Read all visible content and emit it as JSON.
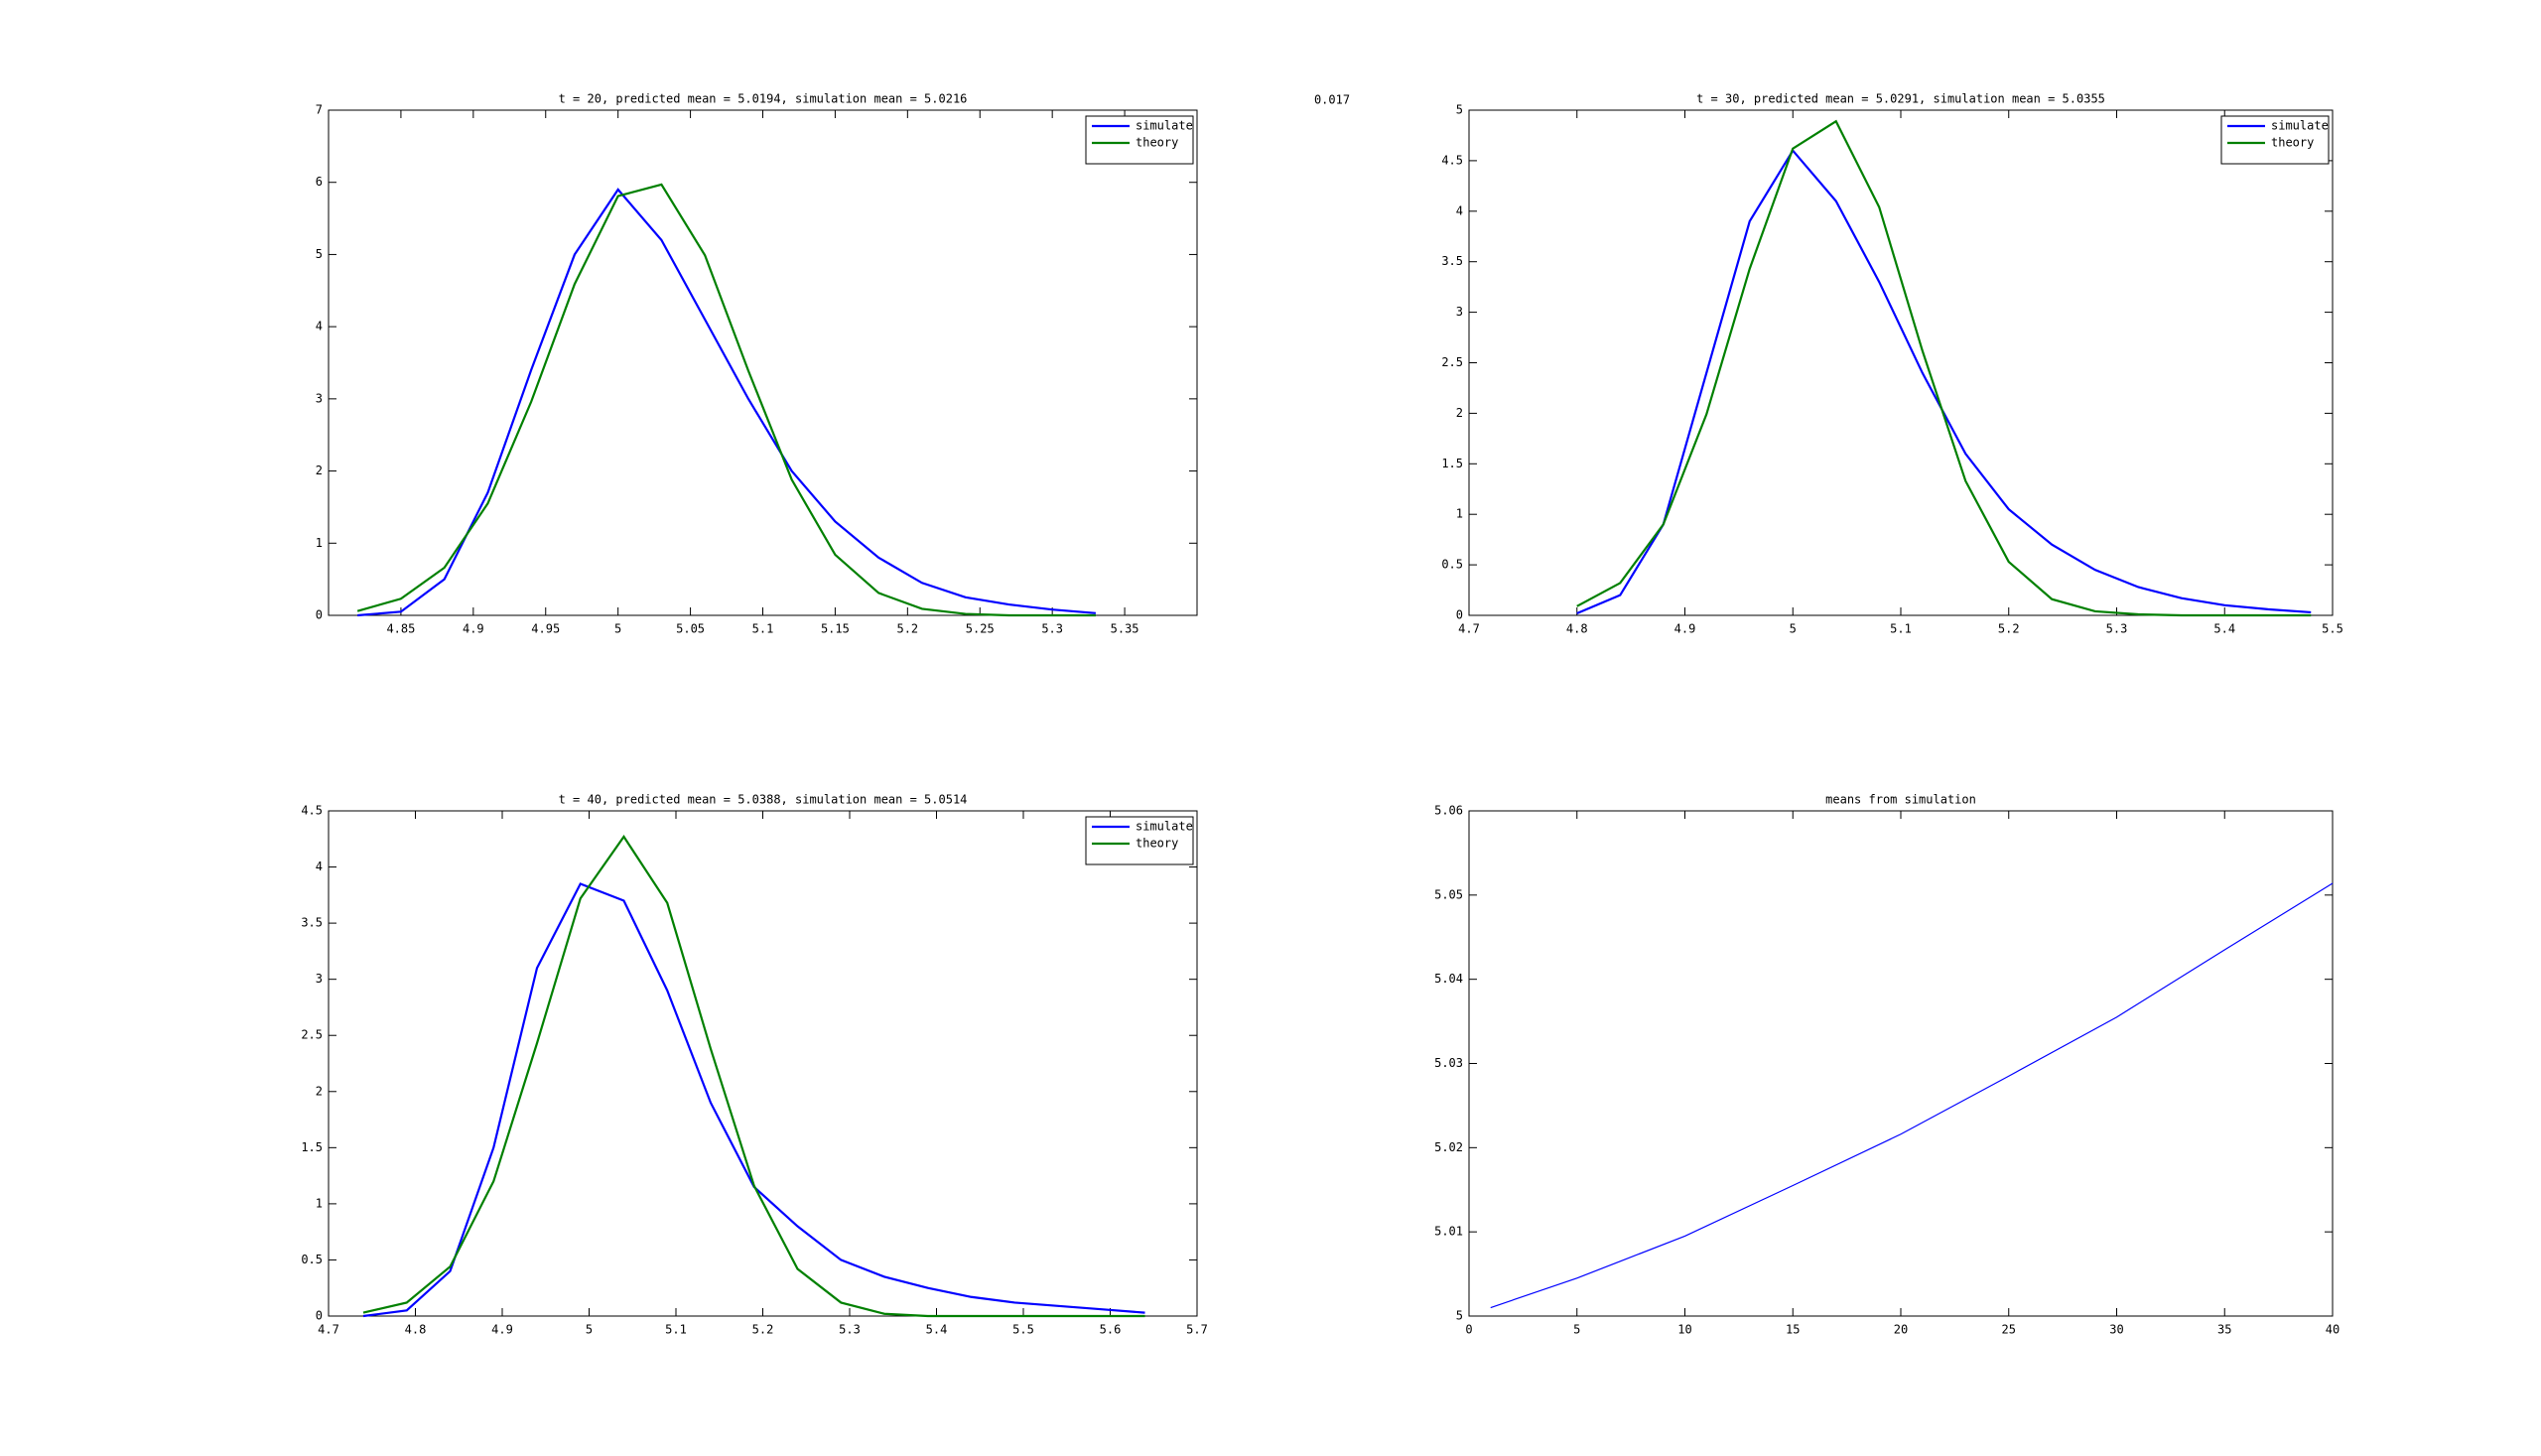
{
  "annotation": "0.017",
  "chart_data": [
    {
      "type": "line",
      "title": "t = 20,  predicted mean = 5.0194,  simulation mean = 5.0216",
      "x": [
        4.82,
        4.85,
        4.88,
        4.91,
        4.94,
        4.97,
        5.0,
        5.03,
        5.06,
        5.09,
        5.12,
        5.15,
        5.18,
        5.21,
        5.24,
        5.27,
        5.3,
        5.33
      ],
      "series": [
        {
          "name": "simulate",
          "color": "#0000ff",
          "values": [
            0,
            0.05,
            0.5,
            1.7,
            3.4,
            5.0,
            5.9,
            5.2,
            4.1,
            3.0,
            2.0,
            1.3,
            0.8,
            0.45,
            0.25,
            0.15,
            0.08,
            0.03
          ]
        },
        {
          "name": "theory",
          "color": "#008000",
          "values": [
            0.06,
            0.23,
            0.66,
            1.55,
            2.96,
            4.59,
            5.81,
            5.97,
            4.99,
            3.39,
            1.88,
            0.84,
            0.31,
            0.09,
            0.02,
            0,
            0,
            0
          ]
        }
      ],
      "xlim": [
        4.8,
        5.4
      ],
      "xticks": [
        4.85,
        4.9,
        4.95,
        5,
        5.05,
        5.1,
        5.15,
        5.2,
        5.25,
        5.3,
        5.35
      ],
      "ylim": [
        0,
        7
      ],
      "yticks": [
        0,
        1,
        2,
        3,
        4,
        5,
        6,
        7
      ],
      "legend": "northeast"
    },
    {
      "type": "line",
      "title": "t = 30,  predicted mean = 5.0291,  simulation mean = 5.0355",
      "x": [
        4.8,
        4.84,
        4.88,
        4.92,
        4.96,
        5.0,
        5.04,
        5.08,
        5.12,
        5.16,
        5.2,
        5.24,
        5.28,
        5.32,
        5.36,
        5.4,
        5.44,
        5.48
      ],
      "series": [
        {
          "name": "simulate",
          "color": "#0000ff",
          "values": [
            0.02,
            0.2,
            0.9,
            2.4,
            3.9,
            4.6,
            4.1,
            3.3,
            2.4,
            1.6,
            1.05,
            0.7,
            0.45,
            0.28,
            0.17,
            0.1,
            0.06,
            0.03
          ]
        },
        {
          "name": "theory",
          "color": "#008000",
          "values": [
            0.09,
            0.32,
            0.9,
            1.99,
            3.43,
            4.62,
            4.89,
            4.04,
            2.62,
            1.33,
            0.53,
            0.16,
            0.04,
            0.01,
            0,
            0,
            0,
            0
          ]
        }
      ],
      "xlim": [
        4.7,
        5.5
      ],
      "xticks": [
        4.7,
        4.8,
        4.9,
        5,
        5.1,
        5.2,
        5.3,
        5.4,
        5.5
      ],
      "ylim": [
        0,
        5
      ],
      "yticks": [
        0,
        0.5,
        1,
        1.5,
        2,
        2.5,
        3,
        3.5,
        4,
        4.5,
        5
      ],
      "legend": "northeast"
    },
    {
      "type": "line",
      "title": "t = 40,  predicted mean = 5.0388,  simulation mean = 5.0514",
      "x": [
        4.74,
        4.79,
        4.84,
        4.89,
        4.94,
        4.99,
        5.04,
        5.09,
        5.14,
        5.19,
        5.24,
        5.29,
        5.34,
        5.39,
        5.44,
        5.49,
        5.54,
        5.59,
        5.64
      ],
      "series": [
        {
          "name": "simulate",
          "color": "#0000ff",
          "values": [
            0,
            0.05,
            0.4,
            1.5,
            3.1,
            3.85,
            3.7,
            2.9,
            1.9,
            1.15,
            0.8,
            0.5,
            0.35,
            0.25,
            0.17,
            0.12,
            0.09,
            0.06,
            0.03
          ]
        },
        {
          "name": "theory",
          "color": "#008000",
          "values": [
            0.03,
            0.12,
            0.44,
            1.2,
            2.43,
            3.72,
            4.27,
            3.68,
            2.38,
            1.16,
            0.42,
            0.12,
            0.02,
            0,
            0,
            0,
            0,
            0,
            0
          ]
        }
      ],
      "xlim": [
        4.7,
        5.7
      ],
      "xticks": [
        4.7,
        4.8,
        4.9,
        5,
        5.1,
        5.2,
        5.3,
        5.4,
        5.5,
        5.6,
        5.7
      ],
      "ylim": [
        0,
        4.5
      ],
      "yticks": [
        0,
        0.5,
        1,
        1.5,
        2,
        2.5,
        3,
        3.5,
        4,
        4.5
      ],
      "legend": "northeast"
    },
    {
      "type": "line",
      "title": "means from simulation",
      "x": [
        1,
        5,
        10,
        15,
        20,
        25,
        30,
        35,
        40
      ],
      "values": [
        5.001,
        5.0045,
        5.0095,
        5.0155,
        5.0216,
        5.0285,
        5.0355,
        5.0435,
        5.0514
      ],
      "color": "#0000ff",
      "xlim": [
        0,
        40
      ],
      "xticks": [
        0,
        5,
        10,
        15,
        20,
        25,
        30,
        35,
        40
      ],
      "ylim": [
        5,
        5.06
      ],
      "yticks": [
        5,
        5.01,
        5.02,
        5.03,
        5.04,
        5.05,
        5.06
      ]
    }
  ]
}
